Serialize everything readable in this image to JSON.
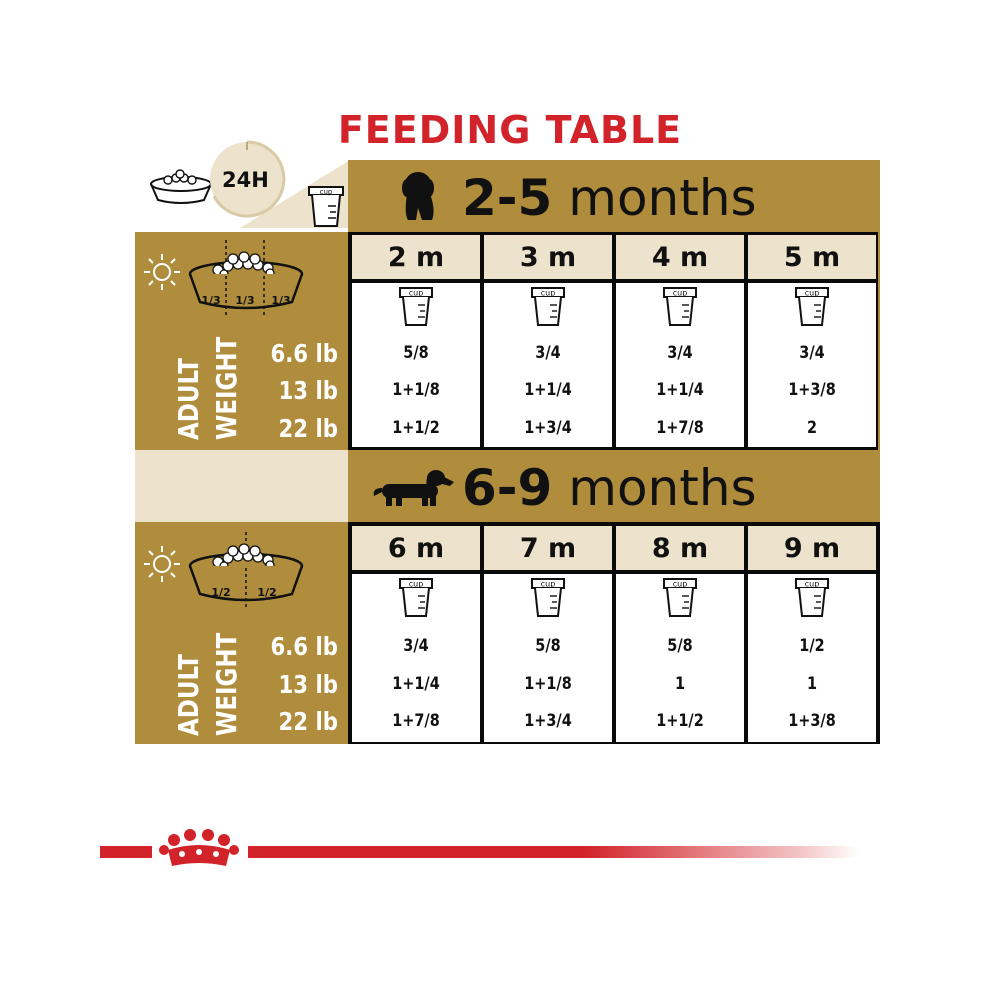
{
  "title": "FEEDING TABLE",
  "header": {
    "clock_label": "24H",
    "cup_label": "cup"
  },
  "weight_axis": {
    "line1": "ADULT",
    "line2": "WEIGHT"
  },
  "sections": [
    {
      "title_bold": "2-5",
      "title_rest": " months",
      "split": [
        "1/3",
        "1/3",
        "1/3"
      ],
      "weights": [
        "6.6 lb",
        "13 lb",
        "22 lb"
      ],
      "columns": [
        {
          "label": "2 m",
          "values": [
            "5/8",
            "1+1/8",
            "1+1/2"
          ]
        },
        {
          "label": "3 m",
          "values": [
            "3/4",
            "1+1/4",
            "1+3/4"
          ]
        },
        {
          "label": "4 m",
          "values": [
            "3/4",
            "1+1/4",
            "1+7/8"
          ]
        },
        {
          "label": "5 m",
          "values": [
            "3/4",
            "1+3/8",
            "2"
          ]
        }
      ]
    },
    {
      "title_bold": "6-9",
      "title_rest": " months",
      "split": [
        "1/2",
        "1/2"
      ],
      "weights": [
        "6.6 lb",
        "13 lb",
        "22 lb"
      ],
      "columns": [
        {
          "label": "6 m",
          "values": [
            "3/4",
            "1+1/4",
            "1+7/8"
          ]
        },
        {
          "label": "7 m",
          "values": [
            "5/8",
            "1+1/8",
            "1+3/4"
          ]
        },
        {
          "label": "8 m",
          "values": [
            "5/8",
            "1",
            "1+1/2"
          ]
        },
        {
          "label": "9 m",
          "values": [
            "1/2",
            "1",
            "1+3/8"
          ]
        }
      ]
    }
  ],
  "colors": {
    "gold": "#b08d3c",
    "cream": "#ede3cc",
    "brand_red": "#d2232a"
  }
}
